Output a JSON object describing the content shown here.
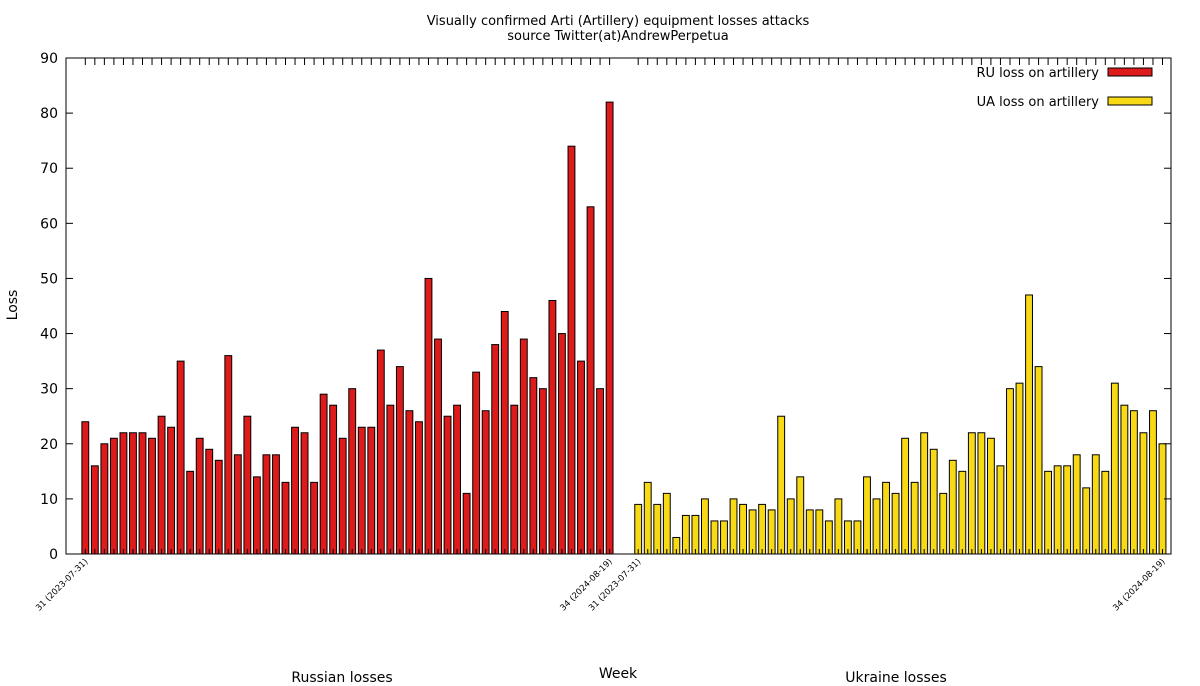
{
  "chart_data": {
    "type": "bar",
    "title": [
      "Visually confirmed Arti (Artillery) equipment losses attacks",
      "source Twitter(at)AndrewPerpetua"
    ],
    "xlabel": "Week",
    "ylabel": "Loss",
    "ylim": [
      0,
      90
    ],
    "yticks": [
      0,
      10,
      20,
      30,
      40,
      50,
      60,
      70,
      80,
      90
    ],
    "grid": false,
    "legend_position": "top-right",
    "group_labels": [
      "Russian losses",
      "Ukraine losses"
    ],
    "series": [
      {
        "name": "RU loss on artillery",
        "color": "#dd1b1b",
        "first_label": "31 (2023-07-31)",
        "last_label": "34 (2024-08-19)",
        "values": [
          24,
          16,
          20,
          21,
          22,
          22,
          22,
          21,
          25,
          23,
          35,
          15,
          21,
          19,
          17,
          36,
          18,
          25,
          14,
          18,
          18,
          13,
          23,
          22,
          13,
          29,
          27,
          21,
          30,
          23,
          23,
          37,
          27,
          34,
          26,
          24,
          50,
          39,
          25,
          27,
          11,
          33,
          26,
          38,
          44,
          27,
          39,
          32,
          30,
          46,
          40,
          74,
          35,
          63,
          30,
          82
        ]
      },
      {
        "name": "UA loss on artillery",
        "color": "#f7d915",
        "first_label": "31 (2023-07-31)",
        "last_label": "34 (2024-08-19)",
        "values": [
          9,
          13,
          9,
          11,
          3,
          7,
          7,
          10,
          6,
          6,
          10,
          9,
          8,
          9,
          8,
          25,
          10,
          14,
          8,
          8,
          6,
          10,
          6,
          6,
          14,
          10,
          13,
          11,
          21,
          13,
          22,
          19,
          11,
          17,
          15,
          22,
          22,
          21,
          16,
          30,
          31,
          47,
          34,
          15,
          16,
          16,
          18,
          12,
          18,
          15,
          31,
          27,
          26,
          22,
          26,
          20
        ]
      }
    ]
  }
}
